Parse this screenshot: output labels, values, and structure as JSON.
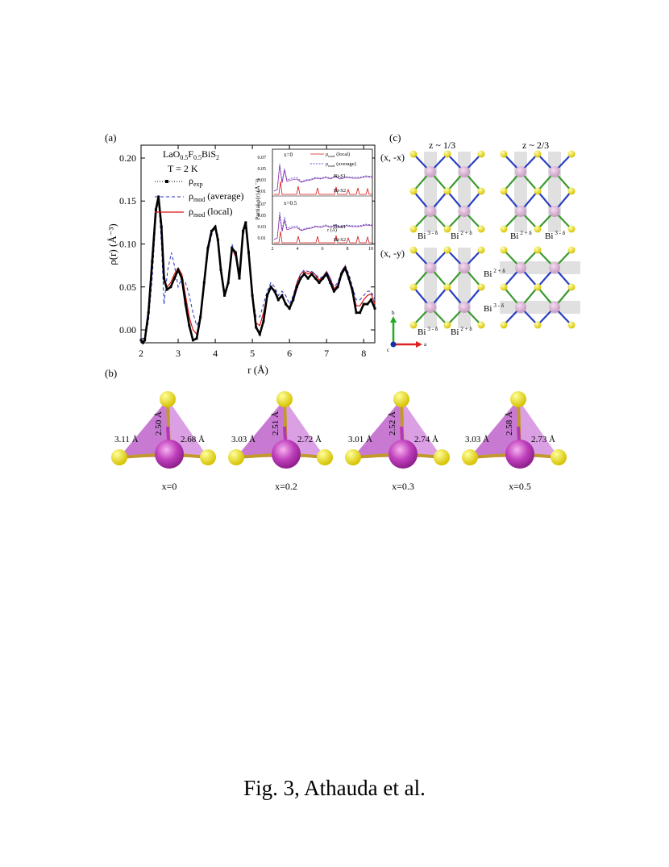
{
  "figure": {
    "caption": "Fig. 3, Athauda et al.",
    "panel_a": {
      "label": "(a)",
      "compound": "LaO0.5F0.5BiS2",
      "compound_parts": [
        "LaO",
        "0.5",
        "F",
        "0.5",
        "BiS",
        "2"
      ],
      "temperature": "T = 2 K",
      "legend": [
        {
          "sym": "ρ",
          "sub": "exp",
          "tail": ""
        },
        {
          "sym": "ρ",
          "sub": "mod",
          "tail": "(average)"
        },
        {
          "sym": "ρ",
          "sub": "mod",
          "tail": "(local)"
        }
      ],
      "ylabel": "ρ(r) (Å⁻³)",
      "xlabel": "r (Å)",
      "inset": {
        "ylabel": "Partial ρ(r) (Å⁻³)",
        "xlabel": "r (Å)",
        "top_label": "x=0",
        "bottom_label": "x=0.5",
        "legend_local": "(local)",
        "legend_average": "(average)",
        "bis1": "Bi-S1",
        "bis2": "Bi-S2",
        "yticks": [
          "0.07",
          "0.05",
          "0.03",
          "0.01"
        ],
        "xticks": [
          "2",
          "4",
          "6",
          "8",
          "10"
        ]
      }
    },
    "panel_b": {
      "label": "(b)",
      "tetrahedra": [
        {
          "x": "x=0",
          "top": "2.50 Å",
          "left": "3.11 Å",
          "right": "2.68 Å"
        },
        {
          "x": "x=0.2",
          "top": "2.51 Å",
          "left": "3.03 Å",
          "right": "2.72 Å"
        },
        {
          "x": "x=0.3",
          "top": "2.52 Å",
          "left": "3.01 Å",
          "right": "2.74 Å"
        },
        {
          "x": "x=0.5",
          "top": "2.58 Å",
          "left": "3.03 Å",
          "right": "2.73 Å"
        }
      ]
    },
    "panel_c": {
      "label": "(c)",
      "col1": "z ~ 1/3",
      "col2": "z ~ 2/3",
      "row1": "(x, -x)",
      "row2": "(x, -y)",
      "bi": "Bi",
      "bi_minus": "3 - δ",
      "bi_plus": "2 + δ",
      "axis_b": "b",
      "axis_a": "a",
      "axis_c": "c"
    }
  },
  "chart_data": [
    {
      "type": "line",
      "title": "",
      "xlabel": "r (Å)",
      "ylabel": "ρ(r) (Å⁻³)",
      "xlim": [
        2,
        8.3
      ],
      "ylim": [
        -0.015,
        0.215
      ],
      "xticks": [
        2,
        3,
        4,
        5,
        6,
        7,
        8
      ],
      "yticks": [
        0.0,
        0.05,
        0.1,
        0.15,
        0.2
      ],
      "ytick_labels": [
        "0.00",
        "0.05",
        "0.10",
        "0.15",
        "0.20"
      ],
      "legend_position": "top-left",
      "series": [
        {
          "name": "ρexp",
          "style": "dotted-markers",
          "color": "#000000",
          "x": [
            2.0,
            2.05,
            2.1,
            2.2,
            2.3,
            2.4,
            2.47,
            2.55,
            2.62,
            2.7,
            2.8,
            2.9,
            3.0,
            3.1,
            3.2,
            3.3,
            3.4,
            3.5,
            3.6,
            3.7,
            3.8,
            3.9,
            4.0,
            4.07,
            4.15,
            4.25,
            4.35,
            4.45,
            4.55,
            4.65,
            4.75,
            4.82,
            4.9,
            5.0,
            5.1,
            5.2,
            5.3,
            5.4,
            5.5,
            5.6,
            5.7,
            5.8,
            5.9,
            6.0,
            6.1,
            6.2,
            6.3,
            6.4,
            6.5,
            6.6,
            6.7,
            6.8,
            6.9,
            7.0,
            7.1,
            7.2,
            7.3,
            7.4,
            7.5,
            7.6,
            7.7,
            7.8,
            7.9,
            8.0,
            8.1,
            8.2,
            8.3
          ],
          "y": [
            -0.012,
            -0.015,
            -0.012,
            0.02,
            0.08,
            0.14,
            0.155,
            0.12,
            0.06,
            0.047,
            0.05,
            0.06,
            0.07,
            0.06,
            0.03,
            0.005,
            -0.012,
            -0.01,
            0.015,
            0.055,
            0.095,
            0.115,
            0.12,
            0.105,
            0.07,
            0.04,
            0.055,
            0.095,
            0.09,
            0.06,
            0.115,
            0.125,
            0.09,
            0.04,
            0.003,
            -0.005,
            0.01,
            0.04,
            0.05,
            0.045,
            0.035,
            0.04,
            0.03,
            0.025,
            0.035,
            0.05,
            0.06,
            0.065,
            0.06,
            0.065,
            0.06,
            0.055,
            0.06,
            0.065,
            0.055,
            0.045,
            0.05,
            0.065,
            0.072,
            0.06,
            0.045,
            0.02,
            0.02,
            0.03,
            0.03,
            0.035,
            0.025
          ]
        },
        {
          "name": "ρmod (average)",
          "style": "dashed",
          "color": "#2233bb",
          "x": [
            2.0,
            2.1,
            2.2,
            2.3,
            2.4,
            2.47,
            2.55,
            2.62,
            2.72,
            2.82,
            2.9,
            3.0,
            3.1,
            3.2,
            3.3,
            3.4,
            3.5,
            3.6,
            3.7,
            3.8,
            3.9,
            4.0,
            4.07,
            4.15,
            4.25,
            4.35,
            4.45,
            4.55,
            4.65,
            4.75,
            4.82,
            4.9,
            5.0,
            5.1,
            5.2,
            5.3,
            5.4,
            5.5,
            5.6,
            5.7,
            5.8,
            5.9,
            6.0,
            6.1,
            6.2,
            6.3,
            6.4,
            6.5,
            6.6,
            6.7,
            6.8,
            6.9,
            7.0,
            7.1,
            7.2,
            7.3,
            7.4,
            7.5,
            7.6,
            7.7,
            7.8,
            7.9,
            8.0,
            8.1,
            8.2,
            8.3
          ],
          "y": [
            -0.01,
            -0.01,
            0.01,
            0.06,
            0.13,
            0.155,
            0.1,
            0.03,
            0.07,
            0.09,
            0.075,
            0.05,
            0.06,
            0.055,
            0.04,
            0.02,
            0.005,
            0.015,
            0.05,
            0.09,
            0.11,
            0.12,
            0.11,
            0.075,
            0.045,
            0.055,
            0.1,
            0.085,
            0.06,
            0.11,
            0.12,
            0.085,
            0.04,
            0.015,
            0.015,
            0.03,
            0.045,
            0.055,
            0.05,
            0.04,
            0.045,
            0.04,
            0.03,
            0.04,
            0.055,
            0.065,
            0.07,
            0.068,
            0.068,
            0.065,
            0.06,
            0.062,
            0.068,
            0.06,
            0.05,
            0.055,
            0.068,
            0.075,
            0.065,
            0.05,
            0.035,
            0.035,
            0.04,
            0.045,
            0.045,
            0.035
          ]
        },
        {
          "name": "ρmod (local)",
          "style": "solid",
          "color": "#dd1111",
          "x": [
            2.0,
            2.1,
            2.2,
            2.3,
            2.4,
            2.47,
            2.55,
            2.62,
            2.7,
            2.8,
            2.9,
            3.0,
            3.1,
            3.2,
            3.3,
            3.4,
            3.5,
            3.6,
            3.7,
            3.8,
            3.9,
            4.0,
            4.07,
            4.15,
            4.25,
            4.35,
            4.45,
            4.55,
            4.65,
            4.75,
            4.82,
            4.9,
            5.0,
            5.1,
            5.2,
            5.3,
            5.4,
            5.5,
            5.6,
            5.7,
            5.8,
            5.9,
            6.0,
            6.1,
            6.2,
            6.3,
            6.4,
            6.5,
            6.6,
            6.7,
            6.8,
            6.9,
            7.0,
            7.1,
            7.2,
            7.3,
            7.4,
            7.5,
            7.6,
            7.7,
            7.8,
            7.9,
            8.0,
            8.1,
            8.2,
            8.3
          ],
          "y": [
            -0.01,
            -0.01,
            0.015,
            0.07,
            0.135,
            0.155,
            0.115,
            0.055,
            0.05,
            0.055,
            0.065,
            0.072,
            0.065,
            0.04,
            0.015,
            0.0,
            -0.005,
            0.015,
            0.055,
            0.095,
            0.115,
            0.12,
            0.105,
            0.07,
            0.04,
            0.055,
            0.095,
            0.085,
            0.06,
            0.115,
            0.125,
            0.09,
            0.04,
            0.008,
            0.005,
            0.02,
            0.04,
            0.05,
            0.045,
            0.035,
            0.04,
            0.03,
            0.025,
            0.038,
            0.055,
            0.065,
            0.068,
            0.065,
            0.068,
            0.064,
            0.058,
            0.062,
            0.068,
            0.06,
            0.048,
            0.052,
            0.068,
            0.074,
            0.062,
            0.045,
            0.028,
            0.028,
            0.035,
            0.04,
            0.042,
            0.03
          ]
        }
      ]
    }
  ]
}
